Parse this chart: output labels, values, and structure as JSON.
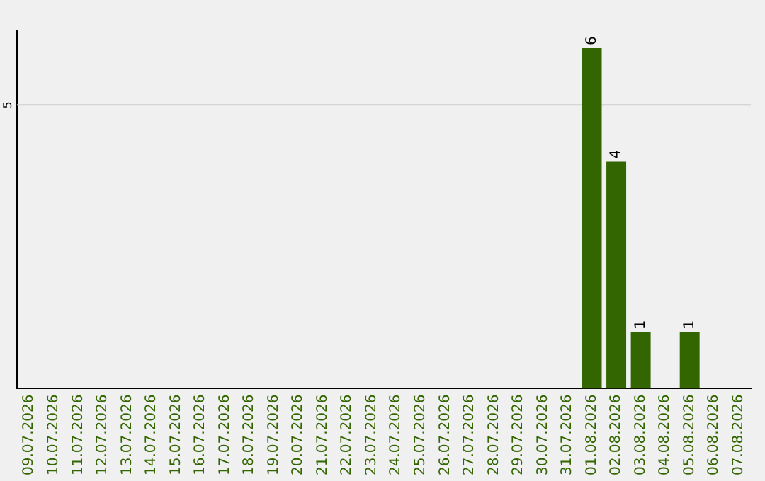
{
  "chart_data": {
    "type": "bar",
    "categories": [
      "09.07.2026",
      "10.07.2026",
      "11.07.2026",
      "12.07.2026",
      "13.07.2026",
      "14.07.2026",
      "15.07.2026",
      "16.07.2026",
      "17.07.2026",
      "18.07.2026",
      "19.07.2026",
      "20.07.2026",
      "21.07.2026",
      "22.07.2026",
      "23.07.2026",
      "24.07.2026",
      "25.07.2026",
      "26.07.2026",
      "27.07.2026",
      "28.07.2026",
      "29.07.2026",
      "30.07.2026",
      "31.07.2026",
      "01.08.2026",
      "02.08.2026",
      "03.08.2026",
      "04.08.2026",
      "05.08.2026",
      "06.08.2026",
      "07.08.2026"
    ],
    "values": [
      null,
      null,
      null,
      null,
      null,
      null,
      null,
      null,
      null,
      null,
      null,
      null,
      null,
      null,
      null,
      null,
      null,
      null,
      null,
      null,
      null,
      null,
      null,
      6,
      4,
      1,
      null,
      1,
      null,
      null
    ],
    "data_labels": true,
    "color": "#336600",
    "ylim": [
      0,
      6.3
    ],
    "ref_lines": [
      {
        "axis": "y",
        "value": 5,
        "label": "5",
        "color": "#cccccc"
      }
    ],
    "legend": false
  }
}
